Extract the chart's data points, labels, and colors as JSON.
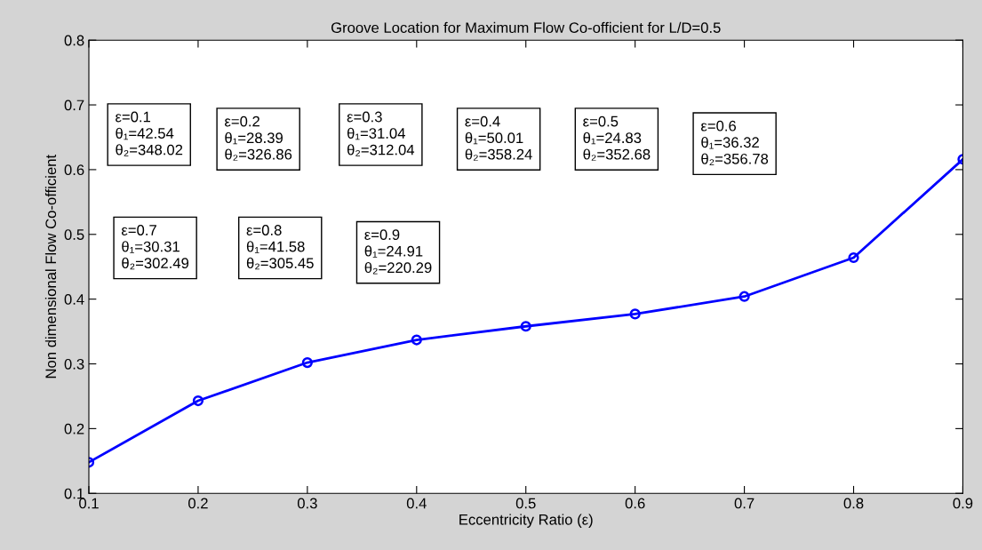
{
  "chart_data": {
    "type": "line",
    "title": "Groove Location for Maximum Flow Co-officient for L/D=0.5",
    "xlabel": "Eccentricity Ratio (ε)",
    "ylabel": "Non dimensional Flow Co-officient",
    "x": [
      0.1,
      0.2,
      0.3,
      0.4,
      0.5,
      0.6,
      0.7,
      0.8,
      0.9
    ],
    "series": [
      {
        "color": "#0000ff",
        "values": [
          0.148,
          0.243,
          0.302,
          0.337,
          0.358,
          0.377,
          0.404,
          0.464,
          0.616
        ]
      }
    ],
    "marker": "circle",
    "line_style": "solid",
    "grid": false,
    "legend": false,
    "xlim": [
      0.1,
      0.9
    ],
    "ylim": [
      0.1,
      0.8
    ],
    "xticks": [
      0.1,
      0.2,
      0.3,
      0.4,
      0.5,
      0.6,
      0.7,
      0.8,
      0.9
    ],
    "yticks": [
      0.1,
      0.2,
      0.3,
      0.4,
      0.5,
      0.6,
      0.7,
      0.8
    ],
    "annotations": [
      "ε=0.1\nθ₁=42.54\nθ₂=348.02",
      "ε=0.2\nθ₁=28.39\nθ₂=326.86",
      "ε=0.3\nθ₁=31.04\nθ₂=312.04",
      "ε=0.4\nθ₁=50.01\nθ₂=358.24",
      "ε=0.5\nθ₁=24.83\nθ₂=352.68",
      "ε=0.6\nθ₁=36.32\nθ₂=356.78",
      "ε=0.7\nθ₁=30.31\nθ₂=302.49",
      "ε=0.8\nθ₁=41.58\nθ₂=305.45",
      "ε=0.9\nθ₁=24.91\nθ₂=220.29"
    ]
  }
}
